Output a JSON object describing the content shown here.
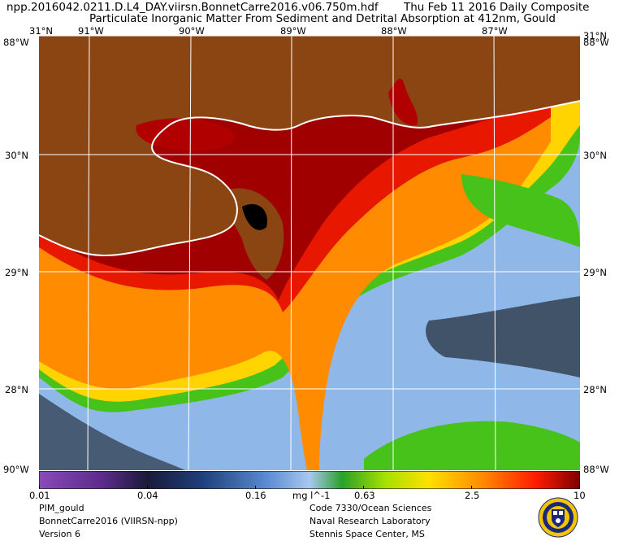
{
  "header": {
    "filename": "npp.2016042.0211.D.L4_DAY.viirsn.BonnetCarre2016.v06.750m.hdf",
    "date": "Thu Feb 11 2016 Daily Composite",
    "product": "Particulate Inorganic Matter From Sediment and Detrital Absorption at 412nm, Gould"
  },
  "map": {
    "lon_labels": [
      "91°W",
      "90°W",
      "89°W",
      "88°W",
      "87°W"
    ],
    "lat_labels": [
      "30°N",
      "29°N",
      "28°N"
    ],
    "corner_top_left": "31°N",
    "corner_bottom_left": "90°W",
    "corner_west_label": "88°W",
    "corner_top_right": "31°N",
    "corner_bottom_right": "88°W",
    "corner_east_label": "88°W",
    "colors": {
      "land": "#8B4513",
      "no_data": "#000000",
      "clear_water": "#8fb8e8",
      "coastline": "#ffffff"
    }
  },
  "colorbar": {
    "ticks": [
      "0.01",
      "0.04",
      "0.16",
      "0.63",
      "2.5",
      "10"
    ],
    "units": "mg l^-1",
    "scale": "log",
    "range": [
      0.01,
      10
    ]
  },
  "footer": {
    "left": [
      "PIM_gould",
      "BonnetCarre2016 (VIIRSN-npp)",
      "Version 6"
    ],
    "right": [
      "Code 7330/Ocean Sciences",
      "Naval Research Laboratory",
      "Stennis Space Center, MS"
    ]
  }
}
